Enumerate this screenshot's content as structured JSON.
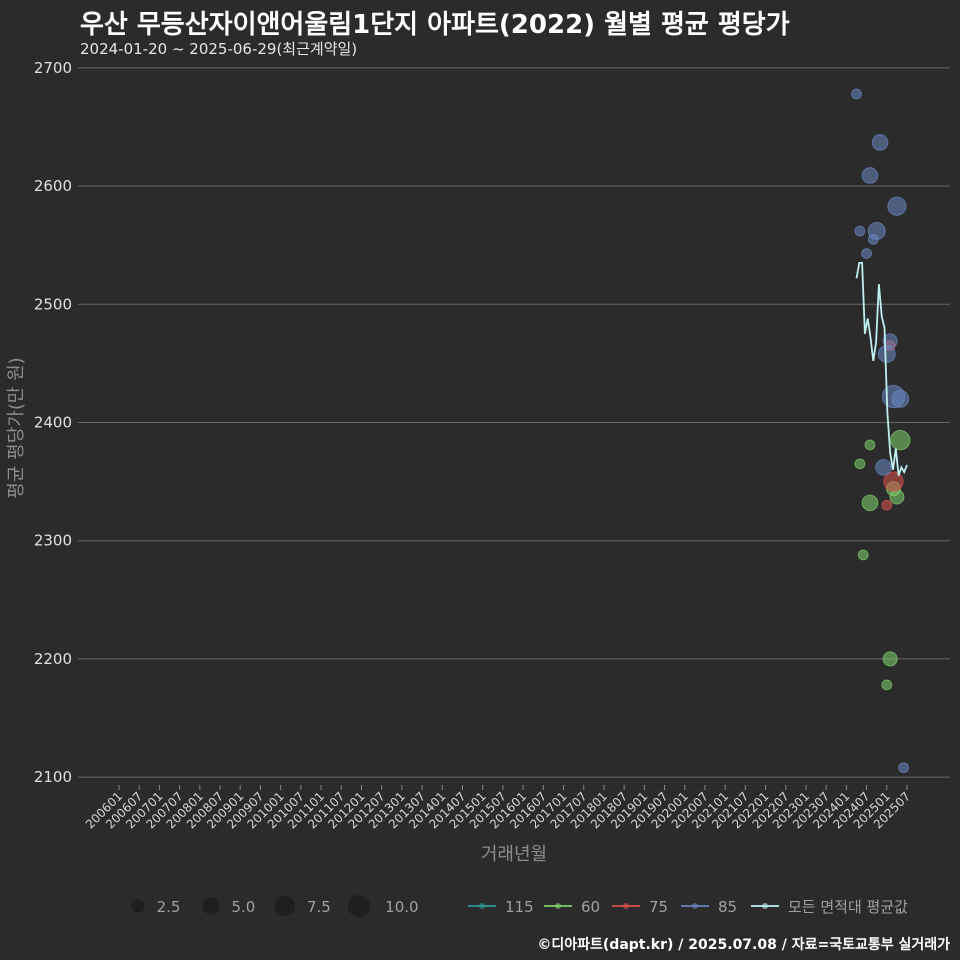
{
  "header": {
    "title": "우산 무등산자이앤어울림1단지 아파트(2022) 월별 평균 평당가",
    "subtitle": "2024-01-20 ~ 2025-06-29(최근계약일)"
  },
  "footer": {
    "caption": "©디아파트(dapt.kr) / 2025.07.08 / 자료=국토교통부 실거래가"
  },
  "chart_data": {
    "type": "scatter",
    "title": "우산 무등산자이앤어울림1단지 아파트(2022) 월별 평균 평당가",
    "xlabel": "거래년월",
    "ylabel": "평균 평당가(만 원)",
    "ylim": [
      2095,
      2705
    ],
    "yticks": [
      2100,
      2200,
      2300,
      2400,
      2500,
      2600,
      2700
    ],
    "xrange": [
      "2006-01",
      "2025-07"
    ],
    "xticks": [
      "200601",
      "200607",
      "200701",
      "200707",
      "200801",
      "200807",
      "200901",
      "200907",
      "201001",
      "201007",
      "201101",
      "201107",
      "201201",
      "201207",
      "201301",
      "201307",
      "201401",
      "201407",
      "201501",
      "201507",
      "201601",
      "201607",
      "201701",
      "201707",
      "201801",
      "201807",
      "201901",
      "201907",
      "202001",
      "202007",
      "202101",
      "202107",
      "202201",
      "202207",
      "202301",
      "202307",
      "202401",
      "202407",
      "202501",
      "202507"
    ],
    "colors": {
      "115": "#2a9d9b",
      "60": "#7fcf6b",
      "75": "#d9534f",
      "85": "#6a86c2",
      "avg": "#bff0f0",
      "grid": "#666666",
      "size_swatch": "#1f1f1f"
    },
    "series": [
      {
        "name": "115",
        "key": "115",
        "points": []
      },
      {
        "name": "60",
        "key": "60",
        "points": [
          {
            "x": "2024-05",
            "y": 2365,
            "n": 1
          },
          {
            "x": "2024-06",
            "y": 2288,
            "n": 1
          },
          {
            "x": "2024-08",
            "y": 2332,
            "n": 4
          },
          {
            "x": "2024-08",
            "y": 2381,
            "n": 1
          },
          {
            "x": "2025-01",
            "y": 2178,
            "n": 1
          },
          {
            "x": "2025-02",
            "y": 2200,
            "n": 3
          },
          {
            "x": "2025-03",
            "y": 2344,
            "n": 3
          },
          {
            "x": "2025-04",
            "y": 2337,
            "n": 3
          },
          {
            "x": "2025-05",
            "y": 2385,
            "n": 7
          }
        ]
      },
      {
        "name": "75",
        "key": "75",
        "points": [
          {
            "x": "2025-01",
            "y": 2330,
            "n": 1
          },
          {
            "x": "2025-02",
            "y": 2465,
            "n": 1
          },
          {
            "x": "2025-03",
            "y": 2350,
            "n": 7
          }
        ]
      },
      {
        "name": "85",
        "key": "85",
        "points": [
          {
            "x": "2024-04",
            "y": 2678,
            "n": 1
          },
          {
            "x": "2024-05",
            "y": 2562,
            "n": 1
          },
          {
            "x": "2024-07",
            "y": 2543,
            "n": 1
          },
          {
            "x": "2024-08",
            "y": 2609,
            "n": 4
          },
          {
            "x": "2024-09",
            "y": 2555,
            "n": 1
          },
          {
            "x": "2024-10",
            "y": 2562,
            "n": 5
          },
          {
            "x": "2024-11",
            "y": 2637,
            "n": 4
          },
          {
            "x": "2024-12",
            "y": 2362,
            "n": 4
          },
          {
            "x": "2025-01",
            "y": 2458,
            "n": 5
          },
          {
            "x": "2025-02",
            "y": 2469,
            "n": 3
          },
          {
            "x": "2025-03",
            "y": 2422,
            "n": 10
          },
          {
            "x": "2025-04",
            "y": 2583,
            "n": 6
          },
          {
            "x": "2025-05",
            "y": 2420,
            "n": 5
          },
          {
            "x": "2025-06",
            "y": 2108,
            "n": 1
          }
        ]
      }
    ],
    "average_line": {
      "name": "모든 면적대 평균값",
      "points": [
        {
          "x": "2024-04",
          "y": 2522
        },
        {
          "x": "2024-05",
          "y": 2535
        },
        {
          "x": "2024-06",
          "y": 2535
        },
        {
          "x": "2024-07",
          "y": 2475
        },
        {
          "x": "2024-08",
          "y": 2488
        },
        {
          "x": "2024-09",
          "y": 2472
        },
        {
          "x": "2024-10",
          "y": 2452
        },
        {
          "x": "2024-11",
          "y": 2468
        },
        {
          "x": "2024-12",
          "y": 2517
        },
        {
          "x": "2025-01",
          "y": 2490
        },
        {
          "x": "2025-02",
          "y": 2480
        },
        {
          "x": "2025-03",
          "y": 2408
        },
        {
          "x": "2025-04",
          "y": 2374
        },
        {
          "x": "2025-05",
          "y": 2360
        },
        {
          "x": "2025-06",
          "y": 2378
        },
        {
          "x": "2025-07",
          "y": 2355
        },
        {
          "x": "2025-08",
          "y": 2362
        },
        {
          "x": "2025-09",
          "y": 2358
        },
        {
          "x": "2025-10",
          "y": 2364
        }
      ]
    },
    "size_legend": [
      {
        "label": "2.5",
        "value": 2.5
      },
      {
        "label": "5.0",
        "value": 5.0
      },
      {
        "label": "7.5",
        "value": 7.5
      },
      {
        "label": "10.0",
        "value": 10.0
      }
    ],
    "color_legend": [
      {
        "label": "115",
        "key": "115"
      },
      {
        "label": "60",
        "key": "60"
      },
      {
        "label": "75",
        "key": "75"
      },
      {
        "label": "85",
        "key": "85"
      },
      {
        "label": "모든 면적대 평균값",
        "key": "avg"
      }
    ]
  }
}
